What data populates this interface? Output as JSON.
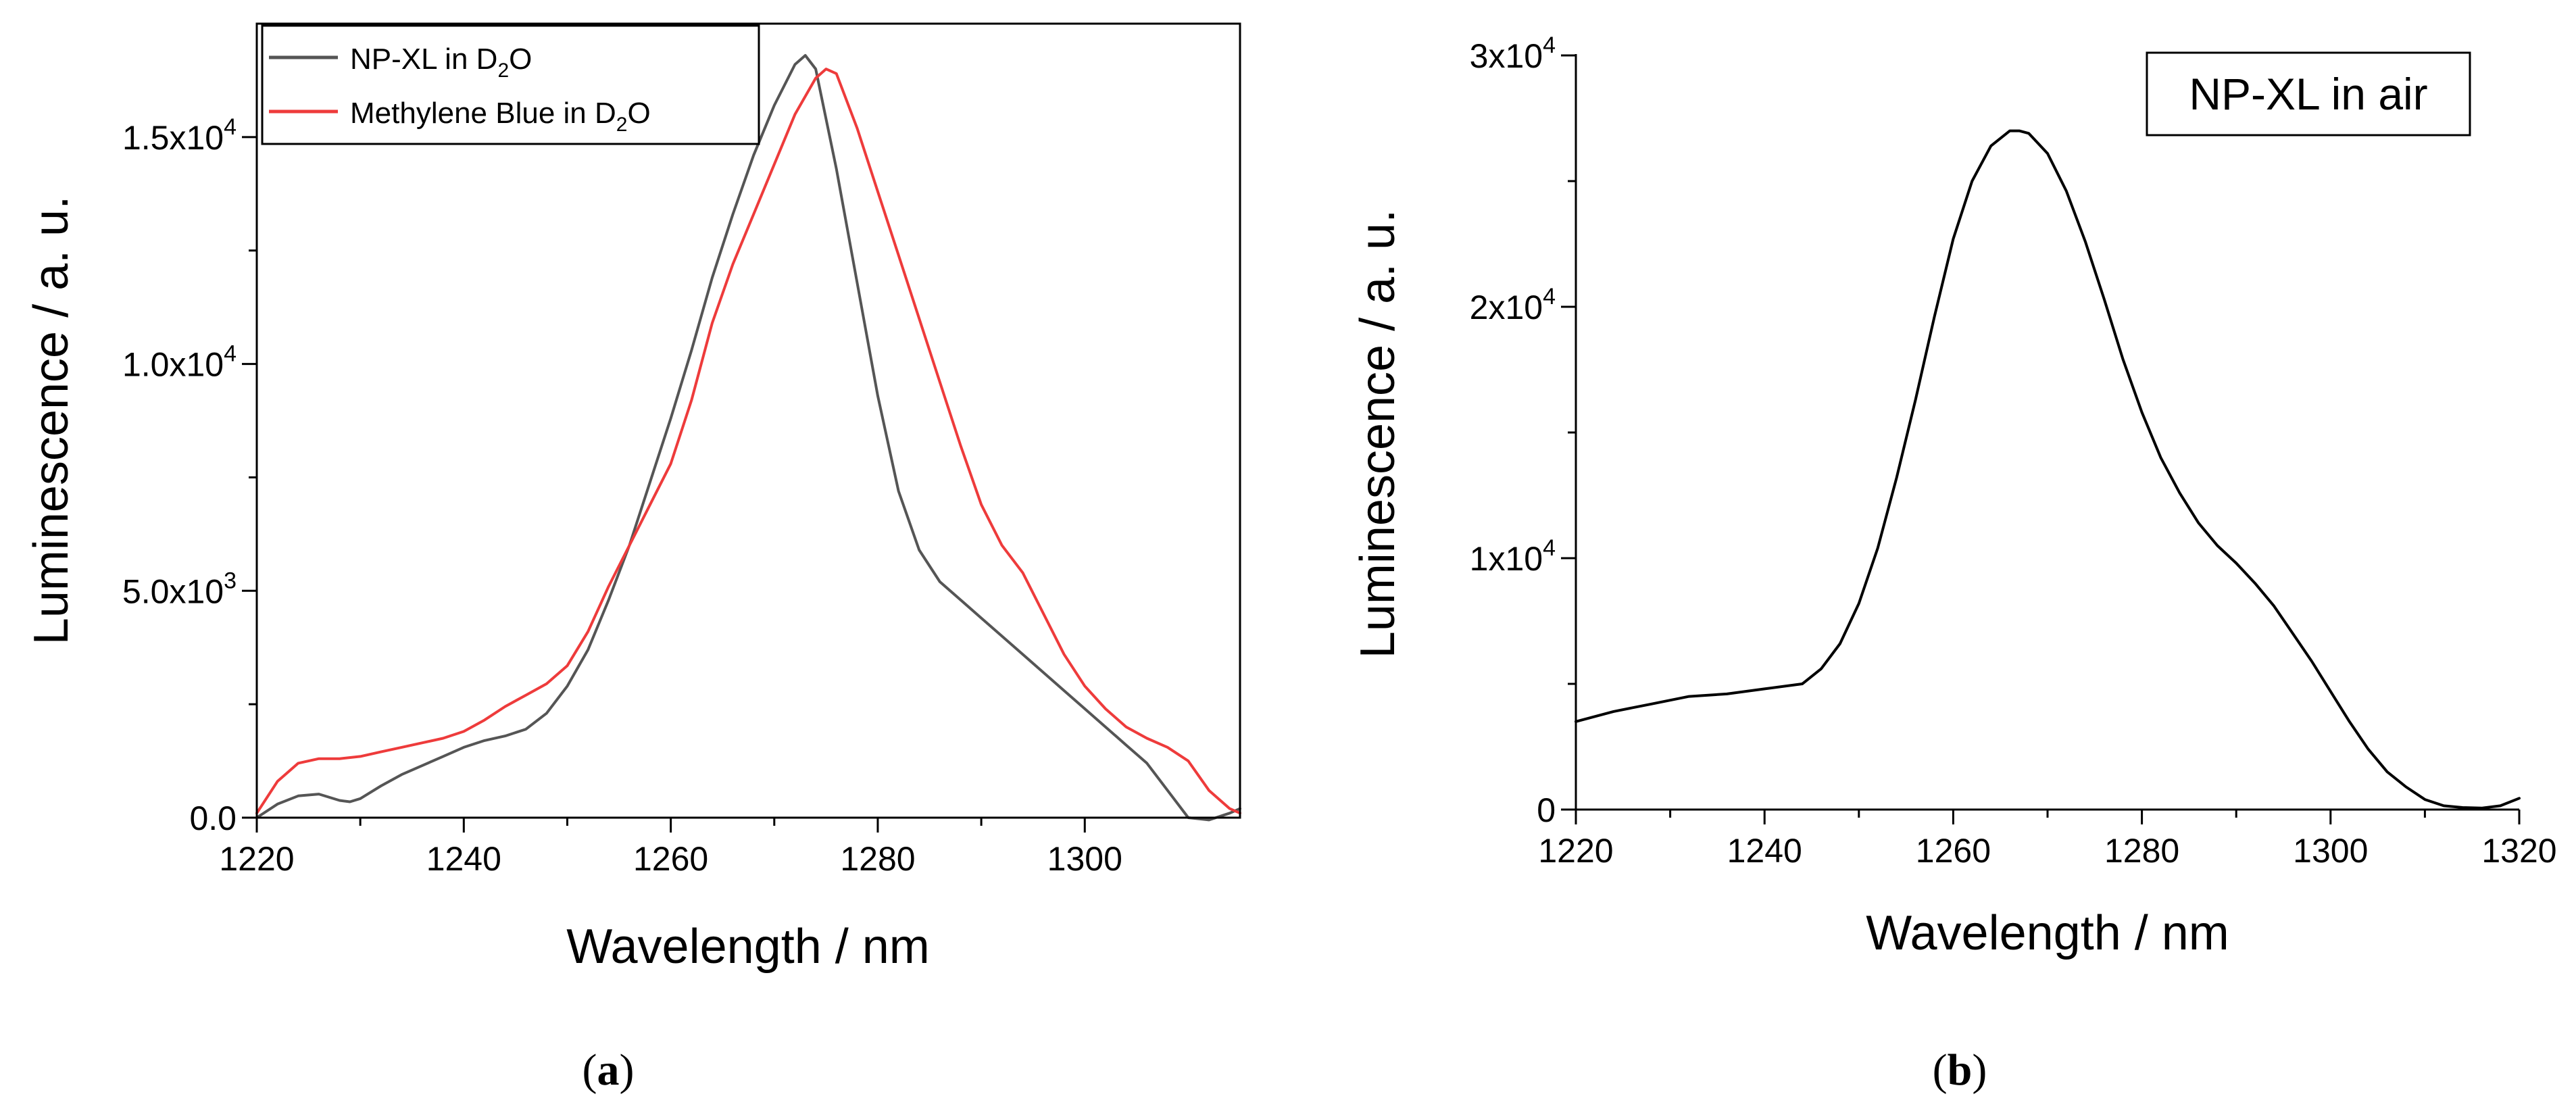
{
  "chart_data": [
    {
      "id": "a",
      "type": "line",
      "caption": "a",
      "xlabel": "Wavelength / nm",
      "ylabel": "Luminescence / a. u.",
      "xlim": [
        1220,
        1315
      ],
      "ylim": [
        0,
        17500
      ],
      "xticks": [
        1220,
        1240,
        1260,
        1280,
        1300
      ],
      "xtick_labels": [
        "1220",
        "1240",
        "1260",
        "1280",
        "1300"
      ],
      "yticks": [
        0,
        5000,
        10000,
        15000
      ],
      "ytick_labels": [
        {
          "base": "0.0",
          "exp": ""
        },
        {
          "base": "5.0x10",
          "exp": "3"
        },
        {
          "base": "1.0x10",
          "exp": "4"
        },
        {
          "base": "1.5x10",
          "exp": "4"
        }
      ],
      "legend_position": "top-left",
      "series": [
        {
          "name": "NP-XL in D2O",
          "legend": {
            "pre": "NP-XL in D",
            "sub": "2",
            "post": "O"
          },
          "color": "#555555",
          "x": [
            1220,
            1222,
            1224,
            1226,
            1228,
            1229,
            1230,
            1232,
            1234,
            1236,
            1238,
            1240,
            1242,
            1244,
            1246,
            1248,
            1250,
            1252,
            1254,
            1256,
            1258,
            1260,
            1262,
            1264,
            1266,
            1268,
            1270,
            1272,
            1273,
            1274,
            1276,
            1278,
            1280,
            1282,
            1284,
            1286,
            1288,
            1290,
            1292,
            1294,
            1296,
            1298,
            1300,
            1302,
            1304,
            1306,
            1308,
            1310,
            1312,
            1314,
            1315
          ],
          "y": [
            0,
            300,
            480,
            520,
            380,
            350,
            420,
            700,
            950,
            1150,
            1350,
            1550,
            1700,
            1800,
            1950,
            2300,
            2900,
            3700,
            4800,
            6000,
            7400,
            8800,
            10300,
            11900,
            13300,
            14600,
            15700,
            16600,
            16800,
            16500,
            14300,
            11800,
            9300,
            7200,
            5900,
            5200,
            4800,
            4400,
            4000,
            3600,
            3200,
            2800,
            2400,
            2000,
            1600,
            1200,
            600,
            0,
            -50,
            100,
            200
          ]
        },
        {
          "name": "Methylene Blue in D2O",
          "legend": {
            "pre": "Methylene Blue in D",
            "sub": "2",
            "post": "O"
          },
          "color": "#ee3b3b",
          "x": [
            1220,
            1222,
            1224,
            1226,
            1228,
            1230,
            1232,
            1234,
            1236,
            1238,
            1240,
            1242,
            1244,
            1246,
            1248,
            1250,
            1252,
            1254,
            1256,
            1258,
            1260,
            1262,
            1264,
            1266,
            1268,
            1270,
            1272,
            1274,
            1275,
            1276,
            1278,
            1280,
            1282,
            1284,
            1286,
            1288,
            1290,
            1292,
            1294,
            1296,
            1298,
            1300,
            1302,
            1304,
            1306,
            1308,
            1310,
            1312,
            1314,
            1315
          ],
          "y": [
            100,
            800,
            1200,
            1300,
            1300,
            1350,
            1450,
            1550,
            1650,
            1750,
            1900,
            2150,
            2450,
            2700,
            2950,
            3350,
            4100,
            5100,
            6000,
            6900,
            7800,
            9200,
            10900,
            12200,
            13300,
            14400,
            15500,
            16300,
            16500,
            16400,
            15200,
            13800,
            12400,
            11000,
            9600,
            8200,
            6900,
            6000,
            5400,
            4500,
            3600,
            2900,
            2400,
            2000,
            1750,
            1550,
            1250,
            600,
            200,
            100
          ]
        }
      ]
    },
    {
      "id": "b",
      "type": "line",
      "caption": "b",
      "xlabel": "Wavelength / nm",
      "ylabel": "Luminescence / a. u.",
      "xlim": [
        1220,
        1320
      ],
      "ylim": [
        0,
        30000
      ],
      "xticks": [
        1220,
        1240,
        1260,
        1280,
        1300,
        1320
      ],
      "xtick_labels": [
        "1220",
        "1240",
        "1260",
        "1280",
        "1300",
        "1320"
      ],
      "yticks": [
        0,
        10000,
        20000,
        30000
      ],
      "ytick_labels": [
        {
          "base": "0",
          "exp": ""
        },
        {
          "base": "1x10",
          "exp": "4"
        },
        {
          "base": "2x10",
          "exp": "4"
        },
        {
          "base": "3x10",
          "exp": "4"
        }
      ],
      "annotation": "NP-XL in air",
      "annotation_position": "top-right",
      "series": [
        {
          "name": "NP-XL in air",
          "color": "#000000",
          "x": [
            1220,
            1224,
            1228,
            1232,
            1236,
            1240,
            1244,
            1246,
            1248,
            1250,
            1252,
            1254,
            1256,
            1258,
            1260,
            1262,
            1264,
            1266,
            1267,
            1268,
            1270,
            1272,
            1274,
            1276,
            1278,
            1280,
            1282,
            1284,
            1286,
            1288,
            1290,
            1292,
            1294,
            1296,
            1298,
            1300,
            1302,
            1304,
            1306,
            1308,
            1310,
            1312,
            1314,
            1316,
            1318,
            1320
          ],
          "y": [
            3500,
            3900,
            4200,
            4500,
            4600,
            4800,
            5000,
            5600,
            6600,
            8200,
            10400,
            13200,
            16300,
            19600,
            22700,
            25000,
            26400,
            27000,
            27000,
            26900,
            26100,
            24600,
            22600,
            20300,
            17900,
            15800,
            14000,
            12600,
            11400,
            10500,
            9800,
            9000,
            8100,
            7000,
            5900,
            4700,
            3500,
            2400,
            1500,
            900,
            400,
            150,
            80,
            60,
            150,
            450
          ]
        }
      ]
    }
  ]
}
